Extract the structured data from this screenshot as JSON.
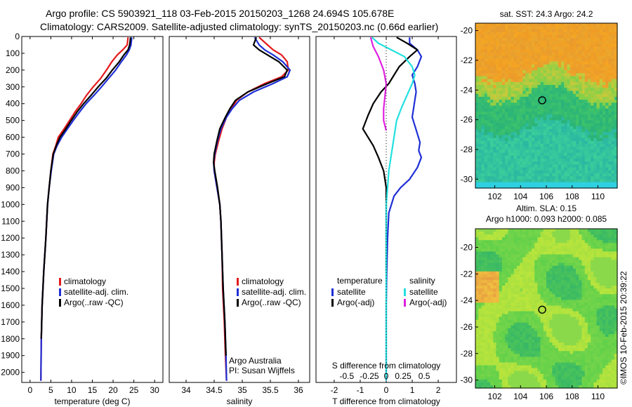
{
  "header": {
    "line1": "Argo profile: CS 5903921_118 03-Feb-2015 20150203_1268 24.694S 105.678E",
    "line2": "Climatology: CARS2009. Satellite-adjusted climatology: synTS_20150203.nc (0.66d earlier)"
  },
  "colors": {
    "climatology": "#e41a1c",
    "satellite": "#1f2fd6",
    "argo": "#000000",
    "satellite_salinity": "#22e0e0",
    "argo_salinity": "#e020e0"
  },
  "chart_data": [
    {
      "type": "line",
      "panel": "temperature",
      "xlabel": "temperature (deg C)",
      "ylabel": "",
      "xlim": [
        -2,
        32
      ],
      "ylim": [
        2060,
        0
      ],
      "xticks": [
        "0",
        "5",
        "10",
        "15",
        "20",
        "25",
        "30"
      ],
      "xtick_values": [
        0,
        5,
        10,
        15,
        20,
        25,
        30
      ],
      "yticks": [
        "0",
        "100",
        "200",
        "300",
        "400",
        "500",
        "600",
        "700",
        "800",
        "900",
        "1000",
        "1100",
        "1200",
        "1300",
        "1400",
        "1500",
        "1600",
        "1700",
        "1800",
        "1900",
        "2000"
      ],
      "ytick_values": [
        0,
        100,
        200,
        300,
        400,
        500,
        600,
        700,
        800,
        900,
        1000,
        1100,
        1200,
        1300,
        1400,
        1500,
        1600,
        1700,
        1800,
        1900,
        2000
      ],
      "legend": [
        "climatology",
        "satellite-adj. clim.",
        "Argo(..raw -QC)"
      ],
      "series": [
        {
          "name": "climatology",
          "color": "#e41a1c",
          "x": [
            23.6,
            23.4,
            22.3,
            21.0,
            19.7,
            18.4,
            17.0,
            15.2,
            13.6,
            12.3,
            10.8,
            9.5,
            8.2,
            6.8,
            6.2,
            5.5,
            5.0,
            4.6,
            4.2,
            3.8,
            3.3,
            2.9,
            2.7,
            2.6
          ],
          "y": [
            5,
            50,
            80,
            110,
            150,
            200,
            250,
            300,
            350,
            400,
            450,
            500,
            550,
            600,
            650,
            700,
            800,
            900,
            1000,
            1200,
            1400,
            1600,
            1800,
            2050
          ]
        },
        {
          "name": "satellite-adj. clim.",
          "color": "#1f2fd6",
          "x": [
            24.5,
            24.3,
            23.9,
            23.2,
            22.0,
            20.6,
            18.9,
            17.2,
            15.4,
            13.5,
            11.9,
            10.4,
            9.0,
            7.6,
            6.5,
            5.7,
            5.1,
            4.6,
            4.2,
            3.8,
            3.3,
            2.9,
            2.7,
            2.6
          ],
          "y": [
            5,
            50,
            80,
            110,
            150,
            200,
            250,
            300,
            350,
            400,
            450,
            500,
            550,
            600,
            650,
            700,
            800,
            900,
            1000,
            1200,
            1400,
            1600,
            1800,
            2050
          ]
        },
        {
          "name": "Argo(..raw -QC)",
          "color": "#000000",
          "x": [
            24.2,
            24.0,
            23.6,
            22.6,
            21.5,
            19.8,
            18.3,
            16.4,
            14.7,
            12.9,
            11.3,
            9.9,
            8.6,
            7.2,
            6.3,
            5.6,
            5.0,
            4.6,
            4.2,
            3.8,
            3.3,
            2.9,
            2.7
          ],
          "y": [
            5,
            50,
            80,
            110,
            150,
            200,
            250,
            300,
            350,
            400,
            450,
            500,
            550,
            600,
            650,
            700,
            800,
            900,
            1000,
            1200,
            1400,
            1600,
            1800
          ]
        }
      ],
      "annotations": []
    },
    {
      "type": "line",
      "panel": "salinity",
      "xlabel": "salinity",
      "xlim": [
        33.7,
        36.2
      ],
      "ylim": [
        2060,
        0
      ],
      "xticks": [
        "34",
        "34.5",
        "35",
        "35.5",
        "36"
      ],
      "xtick_values": [
        34,
        34.5,
        35,
        35.5,
        36
      ],
      "legend": [
        "climatology",
        "satellite-adj. clim.",
        "Argo(..raw -QC)"
      ],
      "series": [
        {
          "name": "climatology",
          "color": "#e41a1c",
          "x": [
            35.3,
            35.45,
            35.55,
            35.7,
            35.8,
            35.82,
            35.7,
            35.4,
            35.1,
            34.9,
            34.8,
            34.72,
            34.64,
            34.58,
            34.52,
            34.5,
            34.5,
            34.55,
            34.6,
            34.62,
            34.64,
            34.65,
            34.68,
            34.7,
            34.72
          ],
          "y": [
            5,
            50,
            80,
            110,
            150,
            200,
            240,
            280,
            330,
            380,
            430,
            480,
            550,
            620,
            700,
            750,
            800,
            900,
            1000,
            1100,
            1300,
            1500,
            1700,
            1900,
            2050
          ]
        },
        {
          "name": "satellite-adj. clim.",
          "color": "#1f2fd6",
          "x": [
            35.22,
            35.3,
            35.4,
            35.55,
            35.72,
            35.85,
            35.8,
            35.55,
            35.2,
            34.95,
            34.82,
            34.72,
            34.62,
            34.56,
            34.51,
            34.49,
            34.5,
            34.55,
            34.6,
            34.62,
            34.64,
            34.66,
            34.69,
            34.71,
            34.72
          ],
          "y": [
            5,
            50,
            80,
            110,
            150,
            200,
            240,
            280,
            330,
            380,
            430,
            480,
            550,
            620,
            700,
            750,
            800,
            900,
            1000,
            1100,
            1300,
            1500,
            1700,
            1900,
            2050
          ]
        },
        {
          "name": "Argo(..raw -QC)",
          "color": "#000000",
          "x": [
            35.25,
            35.2,
            35.3,
            35.45,
            35.65,
            35.8,
            35.75,
            35.45,
            35.1,
            34.88,
            34.78,
            34.7,
            34.6,
            34.55,
            34.5,
            34.49,
            34.51,
            34.56,
            34.6,
            34.62,
            34.64,
            34.66,
            34.69,
            34.71
          ],
          "y": [
            5,
            50,
            80,
            110,
            150,
            200,
            240,
            280,
            330,
            380,
            430,
            480,
            550,
            620,
            700,
            750,
            800,
            900,
            1000,
            1100,
            1300,
            1500,
            1700,
            1900
          ]
        }
      ],
      "annotations": [
        "Argo Australia",
        "PI: Susan Wijffels"
      ]
    },
    {
      "type": "line",
      "panel": "difference",
      "xlabel": "T difference from climatology",
      "xlabel_top": "S difference from climatology",
      "xlim": [
        -2.7,
        2.7
      ],
      "ylim": [
        2060,
        0
      ],
      "xticks": [
        "-2",
        "-1",
        "0",
        "1",
        "2"
      ],
      "xtick_values": [
        -2,
        -1,
        0,
        1,
        2
      ],
      "s_ticks": [
        "-0.5",
        "-0.25",
        "0",
        "0.25",
        "0.5"
      ],
      "legend_header": [
        "temperature",
        "salinity"
      ],
      "legend": [
        "satellite",
        "Argo(-adj)",
        "satellite",
        "Argo(-adj)"
      ],
      "series": [
        {
          "name": "satellite",
          "color": "#1f2fd6",
          "x": [
            0.9,
            0.9,
            1.2,
            1.35,
            1.2,
            1.0,
            1.1,
            1.15,
            1.1,
            1.05,
            1.0,
            1.1,
            1.2,
            1.3,
            1.25,
            1.35,
            1.2,
            0.9,
            0.55,
            0.3,
            0.1,
            0.05,
            0.02,
            0.0,
            0.0,
            0.0
          ],
          "y": [
            5,
            40,
            80,
            120,
            180,
            230,
            280,
            330,
            380,
            430,
            480,
            530,
            580,
            630,
            680,
            720,
            780,
            850,
            900,
            950,
            1050,
            1200,
            1400,
            1600,
            1800,
            2050
          ]
        },
        {
          "name": "Argo(-adj)",
          "color": "#000000",
          "x": [
            0.4,
            0.8,
            1.2,
            0.9,
            0.5,
            0.3,
            0.1,
            -0.2,
            -0.5,
            -0.7,
            -0.9,
            -0.7,
            -0.5,
            -0.3,
            -0.1,
            0.0,
            0.0,
            0.0,
            0.0
          ],
          "y": [
            5,
            40,
            80,
            120,
            180,
            230,
            280,
            330,
            400,
            470,
            550,
            600,
            650,
            720,
            800,
            900,
            1000,
            1200,
            1400
          ]
        },
        {
          "name": "satellite",
          "color": "#22e0e0",
          "x": [
            -0.55,
            -0.3,
            0.2,
            0.7,
            1.0,
            1.1,
            1.0,
            0.8,
            0.6,
            0.4,
            0.3,
            0.2,
            0.1,
            0.05,
            0.0,
            0.0,
            0.0,
            0.0
          ],
          "y": [
            5,
            40,
            80,
            120,
            180,
            230,
            280,
            350,
            420,
            500,
            600,
            700,
            800,
            900,
            1000,
            1200,
            1500,
            2050
          ]
        },
        {
          "name": "Argo(-adj)",
          "color": "#e020e0",
          "x": [
            -0.6,
            -0.5,
            -0.3,
            -0.1,
            0.0,
            -0.05,
            -0.1,
            -0.1,
            0.0
          ],
          "y": [
            5,
            60,
            120,
            200,
            280,
            360,
            430,
            500,
            560
          ]
        }
      ],
      "annotations": []
    },
    {
      "type": "heatmap",
      "panel": "sst-map",
      "title": "sat. SST: 24.3  Argo: 24.2",
      "xlim": [
        100.5,
        111.5
      ],
      "ylim": [
        -30.6,
        -19.5
      ],
      "xticks": [
        "102",
        "104",
        "106",
        "108",
        "110"
      ],
      "xtick_values": [
        102,
        104,
        106,
        108,
        110
      ],
      "yticks": [
        "-20",
        "-22",
        "-24",
        "-26",
        "-28",
        "-30"
      ],
      "ytick_values": [
        -20,
        -22,
        -24,
        -26,
        -28,
        -30
      ],
      "marker": {
        "lon": 105.678,
        "lat": -24.694
      }
    },
    {
      "type": "heatmap",
      "panel": "sla-map",
      "title_line1": "Altim. SLA: 0.15",
      "title_line2": "Argo h1000: 0.093  h2000: 0.085",
      "xlim": [
        100.5,
        111.5
      ],
      "ylim": [
        -30.6,
        -18.6
      ],
      "xticks": [
        "102",
        "104",
        "106",
        "108",
        "110"
      ],
      "xtick_values": [
        102,
        104,
        106,
        108,
        110
      ],
      "yticks": [
        "-20",
        "-22",
        "-24",
        "-26",
        "-28",
        "-30"
      ],
      "ytick_values": [
        -20,
        -22,
        -24,
        -26,
        -28,
        -30
      ],
      "marker": {
        "lon": 105.678,
        "lat": -24.694
      }
    }
  ],
  "credit": "©IMOS 10-Feb-2015 20:39:22"
}
